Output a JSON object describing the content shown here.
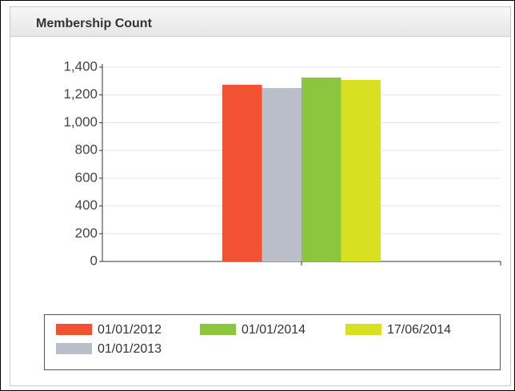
{
  "chart_data": {
    "type": "bar",
    "title": "Membership Count",
    "categories": [
      null
    ],
    "series": [
      {
        "name": "01/01/2012",
        "color": "#f05232",
        "values": [
          1273
        ]
      },
      {
        "name": "01/01/2013",
        "color": "#b9bec9",
        "values": [
          1250
        ]
      },
      {
        "name": "01/01/2014",
        "color": "#8cc63f",
        "values": [
          1325
        ]
      },
      {
        "name": "17/06/2014",
        "color": "#d9e021",
        "values": [
          1308
        ]
      }
    ],
    "ylim": [
      0,
      1400
    ],
    "yticks": [
      0,
      200,
      400,
      600,
      800,
      {
        "value": 1000,
        "label": "1,000"
      },
      {
        "value": 1200,
        "label": "1,200"
      },
      {
        "value": 1400,
        "label": "1,400"
      }
    ],
    "grid": true
  }
}
